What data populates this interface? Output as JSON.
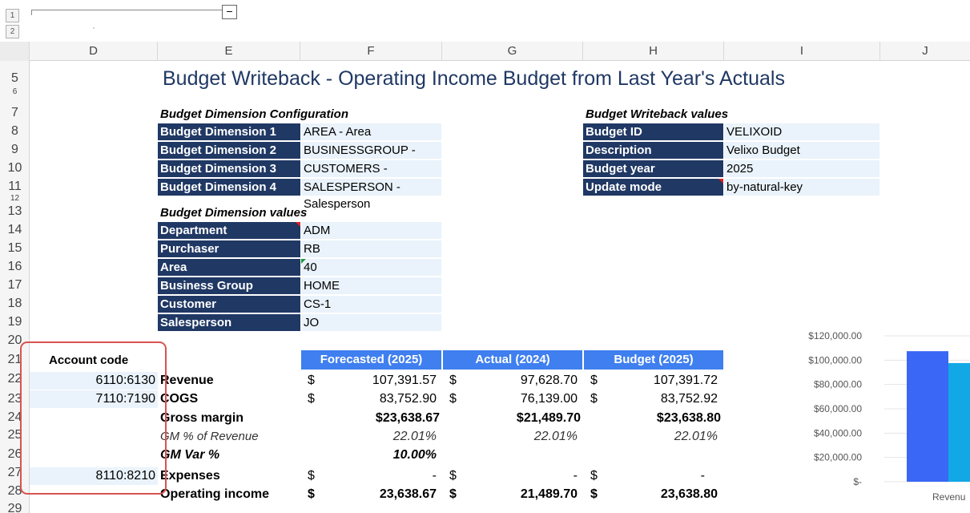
{
  "outline": {
    "levels": [
      "1",
      "2"
    ],
    "collapse_symbol": "−",
    "dot": "·"
  },
  "columns": [
    "D",
    "E",
    "F",
    "G",
    "H",
    "I",
    "J"
  ],
  "rows": [
    "5",
    "6",
    "7",
    "8",
    "9",
    "10",
    "11",
    "12",
    "13",
    "14",
    "15",
    "16",
    "17",
    "18",
    "19",
    "20",
    "21",
    "22",
    "23",
    "24",
    "25",
    "26",
    "27",
    "28",
    "29"
  ],
  "title": "Budget Writeback - Operating Income Budget from Last Year's Actuals",
  "config": {
    "heading": "Budget Dimension Configuration",
    "items": [
      {
        "label": "Budget Dimension 1",
        "value": "AREA - Area"
      },
      {
        "label": "Budget Dimension 2",
        "value": "BUSINESSGROUP - Business Group"
      },
      {
        "label": "Budget Dimension 3",
        "value": "CUSTOMERS - Customer"
      },
      {
        "label": "Budget Dimension 4",
        "value": "SALESPERSON - Salesperson"
      }
    ]
  },
  "writeback": {
    "heading": "Budget Writeback values",
    "items": [
      {
        "label": "Budget ID",
        "value": "VELIXOID"
      },
      {
        "label": "Description",
        "value": "Velixo Budget"
      },
      {
        "label": "Budget year",
        "value": "2025"
      },
      {
        "label": "Update mode",
        "value": "by-natural-key"
      }
    ]
  },
  "dimvalues": {
    "heading": "Budget Dimension values",
    "items": [
      {
        "label": "Department",
        "value": "ADM"
      },
      {
        "label": "Purchaser",
        "value": "RB"
      },
      {
        "label": "Area",
        "value": "40"
      },
      {
        "label": "Business Group",
        "value": "HOME"
      },
      {
        "label": "Customer",
        "value": "CS-1"
      },
      {
        "label": "Salesperson",
        "value": "JO"
      }
    ]
  },
  "table": {
    "account_header": "Account code",
    "headers": [
      "Forecasted (2025)",
      "Actual (2024)",
      "Budget (2025)"
    ],
    "rows": [
      {
        "code": "6110:6130",
        "label": "Revenue",
        "f_cur": "$",
        "f": "107,391.57",
        "g_cur": "$",
        "g": "97,628.70",
        "h_cur": "$",
        "h": "107,391.72"
      },
      {
        "code": "7110:7190",
        "label": "COGS",
        "f_cur": "$",
        "f": "83,752.90",
        "g_cur": "$",
        "g": "76,139.00",
        "h_cur": "$",
        "h": "83,752.92"
      },
      {
        "code": "",
        "label": "Gross margin",
        "f_cur": "",
        "f": "$23,638.67",
        "g_cur": "",
        "g": "$21,489.70",
        "h_cur": "",
        "h": "$23,638.80"
      },
      {
        "code": "",
        "label": "GM % of Revenue",
        "f_cur": "",
        "f": "22.01%",
        "g_cur": "",
        "g": "22.01%",
        "h_cur": "",
        "h": "22.01%"
      },
      {
        "code": "",
        "label": "GM Var %",
        "f_cur": "",
        "f": "10.00%",
        "g_cur": "",
        "g": "",
        "h_cur": "",
        "h": ""
      },
      {
        "code": "8110:8210",
        "label": "Expenses",
        "f_cur": "$",
        "f": "-",
        "g_cur": "$",
        "g": "-",
        "h_cur": "$",
        "h": "-"
      },
      {
        "code": "",
        "label": "Operating income",
        "f_cur": "$",
        "f": "23,638.67",
        "g_cur": "$",
        "g": "21,489.70",
        "h_cur": "$",
        "h": "23,638.80"
      }
    ]
  },
  "chart_data": {
    "type": "bar",
    "categories": [
      "Revenu"
    ],
    "series": [
      {
        "values": [
          107391.57
        ],
        "color": "#3a67f5"
      },
      {
        "values": [
          97628.7
        ],
        "color": "#12a8e6"
      }
    ],
    "yticks": [
      "$120,000.00",
      "$100,000.00",
      "$80,000.00",
      "$60,000.00",
      "$40,000.00",
      "$20,000.00",
      "$-"
    ],
    "ylim": [
      0,
      120000
    ],
    "grid": true
  },
  "colors": {
    "navy": "#203864",
    "light": "#eaf3fb",
    "header_blue": "#3f7fef",
    "highlight": "#d9534f"
  }
}
